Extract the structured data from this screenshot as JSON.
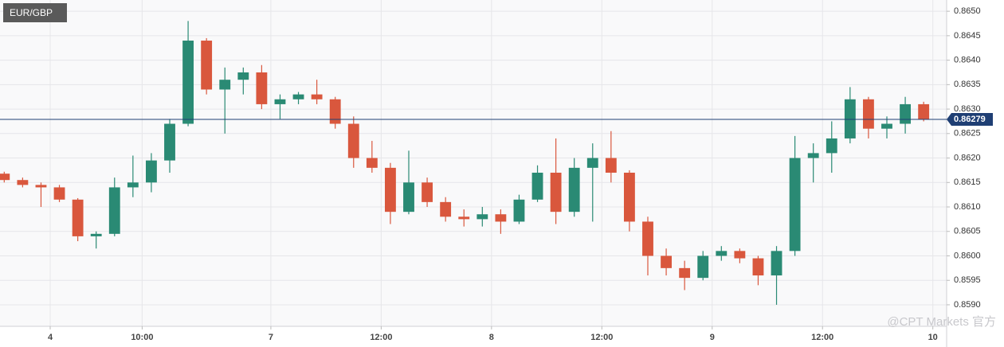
{
  "chart_data": {
    "type": "candlestick",
    "title": "EUR/GBP",
    "watermark": "@CPT Markets 官方",
    "up_color": "#2a8a74",
    "down_color": "#d9573d",
    "grid": true,
    "x": [
      -5,
      -3,
      -1,
      1,
      3,
      5,
      7,
      9,
      11,
      13,
      15,
      17,
      19,
      21,
      23,
      25,
      27,
      29,
      31,
      33,
      35,
      37,
      39,
      41,
      43,
      45,
      47,
      49,
      51,
      53,
      55,
      57,
      59,
      61,
      63,
      65,
      67,
      69,
      71,
      73,
      75,
      77,
      79,
      81,
      83,
      85,
      87,
      89,
      91,
      93,
      95
    ],
    "open": [
      0.86168,
      0.86155,
      0.86145,
      0.8614,
      0.86115,
      0.8604,
      0.86045,
      0.8614,
      0.8615,
      0.86195,
      0.8627,
      0.8644,
      0.8634,
      0.8636,
      0.86375,
      0.8631,
      0.8632,
      0.8633,
      0.8632,
      0.8627,
      0.862,
      0.8618,
      0.8609,
      0.8615,
      0.8611,
      0.8608,
      0.86075,
      0.86085,
      0.8607,
      0.86115,
      0.8617,
      0.8609,
      0.8618,
      0.862,
      0.8617,
      0.8607,
      0.86,
      0.85975,
      0.85955,
      0.86,
      0.8601,
      0.85995,
      0.8596,
      0.8601,
      0.862,
      0.8621,
      0.8624,
      0.8632,
      0.8626,
      0.8627,
      0.8631
    ],
    "high": [
      0.86172,
      0.8616,
      0.8615,
      0.86145,
      0.86118,
      0.8605,
      0.8616,
      0.86205,
      0.8621,
      0.8628,
      0.8648,
      0.86445,
      0.86385,
      0.86385,
      0.8639,
      0.8633,
      0.86335,
      0.8636,
      0.86325,
      0.86285,
      0.86235,
      0.8619,
      0.86215,
      0.8616,
      0.8612,
      0.86095,
      0.861,
      0.86095,
      0.86125,
      0.86185,
      0.8624,
      0.862,
      0.8623,
      0.86255,
      0.86175,
      0.8608,
      0.86015,
      0.8599,
      0.8601,
      0.8602,
      0.86015,
      0.86,
      0.8602,
      0.86245,
      0.8623,
      0.86275,
      0.86345,
      0.86325,
      0.86285,
      0.86325,
      0.86315
    ],
    "low": [
      0.8615,
      0.8614,
      0.861,
      0.8611,
      0.8603,
      0.86015,
      0.8604,
      0.8612,
      0.8613,
      0.8617,
      0.86265,
      0.8633,
      0.8625,
      0.8633,
      0.863,
      0.8628,
      0.8631,
      0.8631,
      0.8626,
      0.8618,
      0.8617,
      0.86065,
      0.86085,
      0.861,
      0.8607,
      0.8606,
      0.8606,
      0.86045,
      0.86065,
      0.8611,
      0.86065,
      0.8608,
      0.8607,
      0.8615,
      0.8605,
      0.8596,
      0.8596,
      0.8593,
      0.8595,
      0.8599,
      0.85985,
      0.8594,
      0.859,
      0.86,
      0.8615,
      0.8617,
      0.8623,
      0.8624,
      0.8624,
      0.8625,
      0.86275
    ],
    "close": [
      0.86155,
      0.86145,
      0.8614,
      0.86115,
      0.8604,
      0.86045,
      0.8614,
      0.8615,
      0.86195,
      0.8627,
      0.8644,
      0.8634,
      0.8636,
      0.86375,
      0.8631,
      0.8632,
      0.8633,
      0.8632,
      0.8627,
      0.862,
      0.8618,
      0.8609,
      0.8615,
      0.8611,
      0.8608,
      0.86075,
      0.86085,
      0.8607,
      0.86115,
      0.8617,
      0.8609,
      0.8618,
      0.862,
      0.8617,
      0.8607,
      0.86,
      0.85975,
      0.85955,
      0.86,
      0.8601,
      0.85995,
      0.8596,
      0.8601,
      0.862,
      0.8621,
      0.8624,
      0.8632,
      0.8626,
      0.8627,
      0.8631,
      0.86279
    ],
    "last_price": 0.86279,
    "last_price_color": "#1f3f74",
    "xlim": [
      -5.46,
      97.5
    ],
    "ylim": [
      0.85856,
      0.86523
    ],
    "xticks": [
      {
        "value": 0,
        "label": "4"
      },
      {
        "value": 10,
        "label": "10:00"
      },
      {
        "value": 24,
        "label": "7"
      },
      {
        "value": 36,
        "label": "12:00"
      },
      {
        "value": 48,
        "label": "8"
      },
      {
        "value": 60,
        "label": "12:00"
      },
      {
        "value": 72,
        "label": "9"
      },
      {
        "value": 84,
        "label": "12:00"
      },
      {
        "value": 96,
        "label": "10"
      }
    ],
    "yticks": [
      {
        "value": 0.859,
        "label": "0.8590"
      },
      0.8595,
      {
        "value": 0.86,
        "label": "0.8600"
      },
      0.8605,
      {
        "value": 0.861,
        "label": "0.8610"
      },
      0.8615,
      {
        "value": 0.862,
        "label": "0.8620"
      },
      0.8625,
      {
        "value": 0.863,
        "label": "0.8630"
      },
      0.8635,
      {
        "value": 0.864,
        "label": "0.8640"
      },
      0.8645,
      {
        "value": 0.865,
        "label": "0.8650"
      }
    ]
  }
}
